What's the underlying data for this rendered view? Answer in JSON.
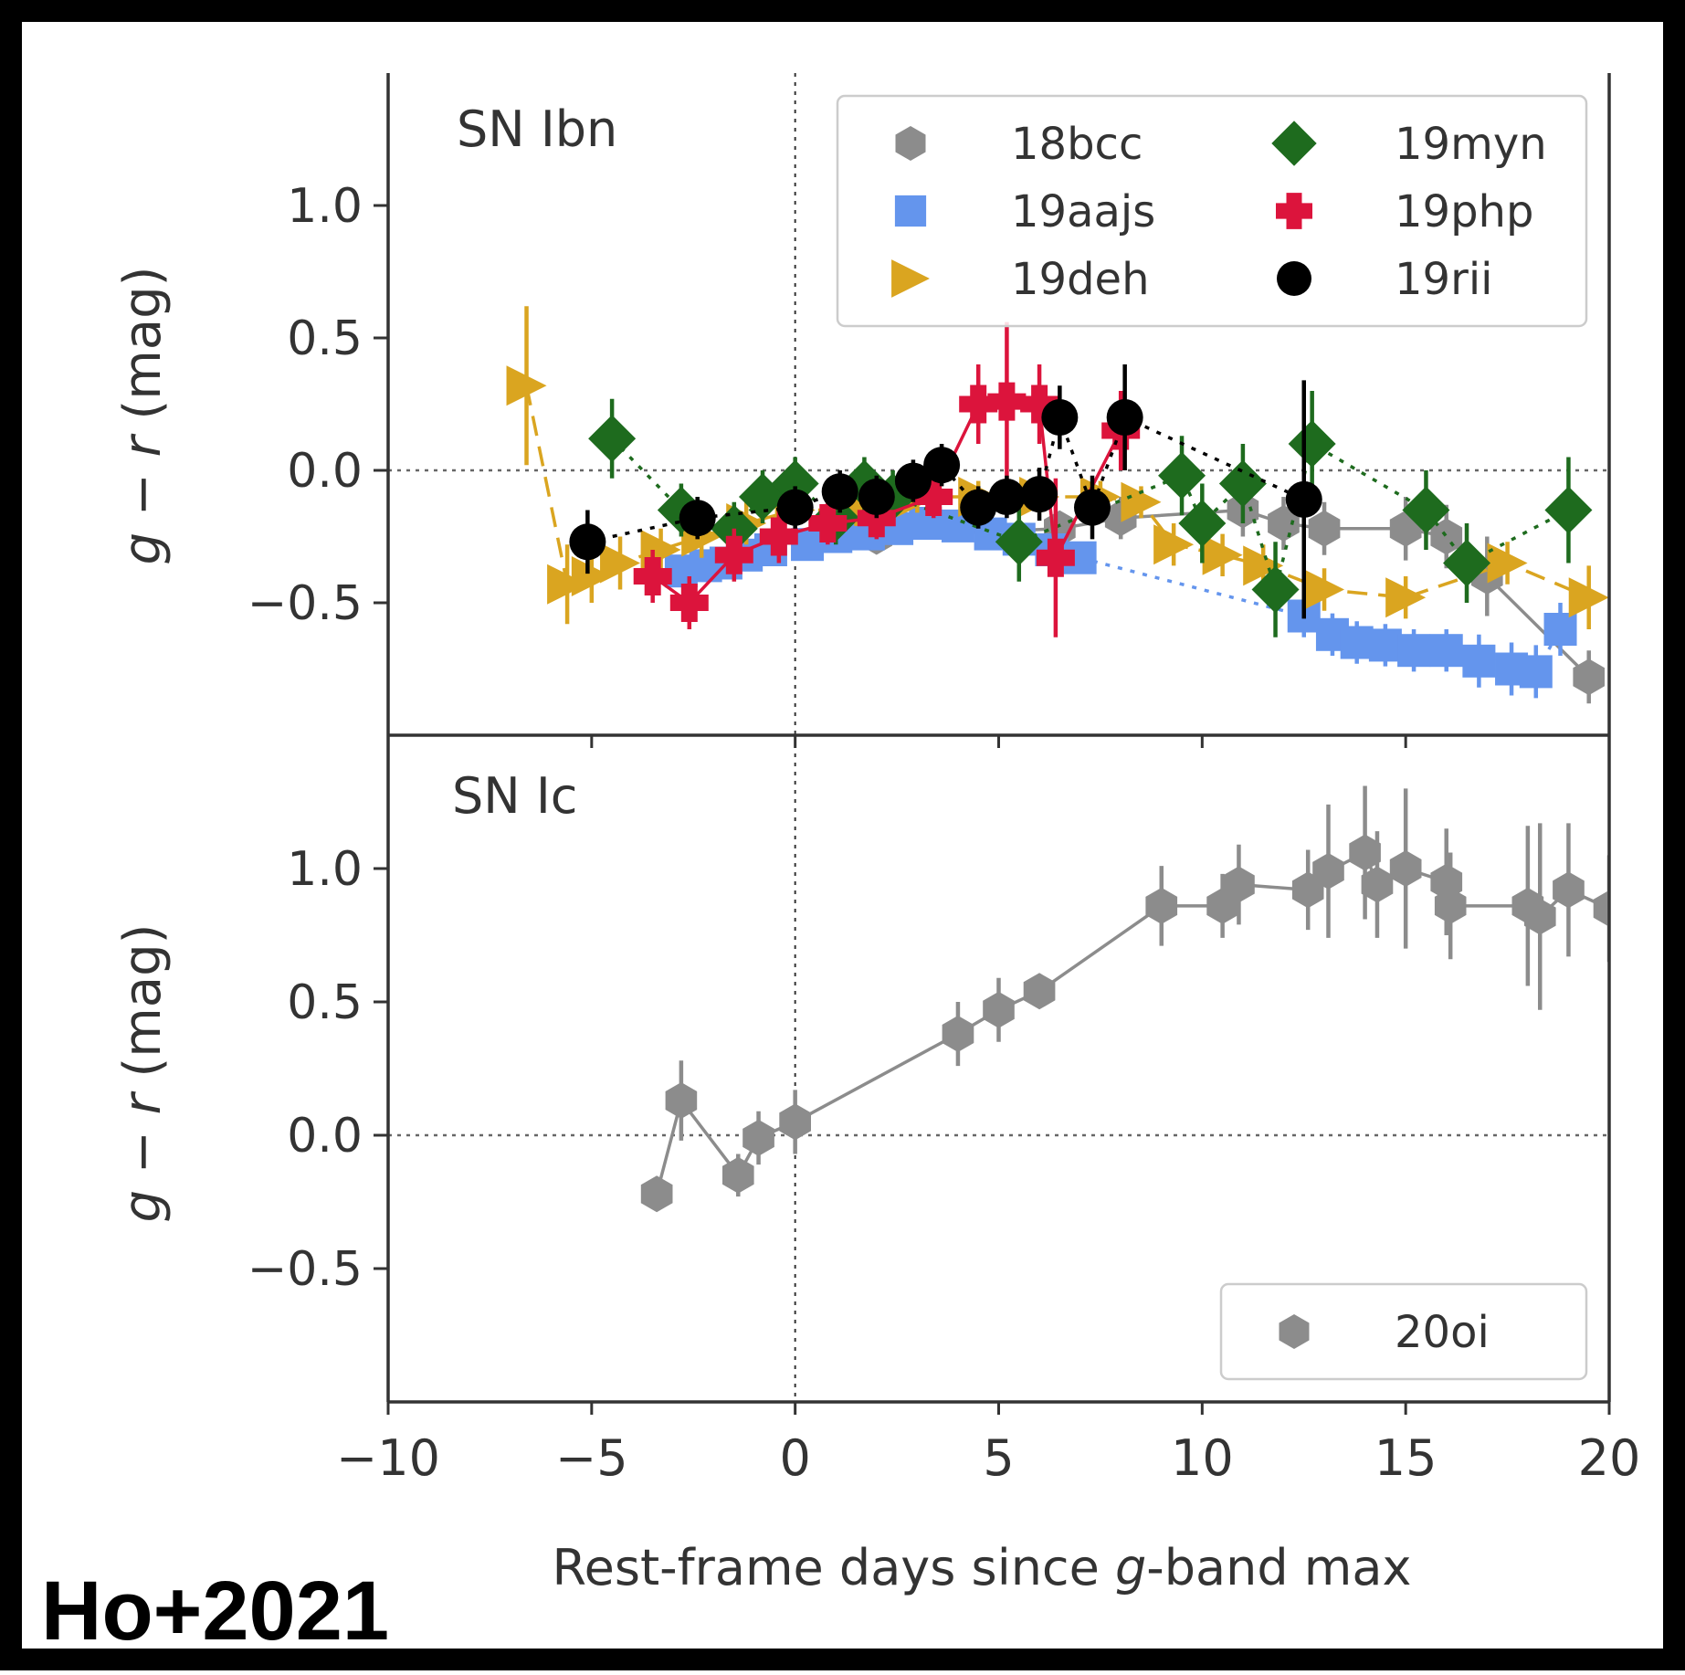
{
  "credit": "Ho+2021",
  "x_axis": {
    "label_pre": "Rest-frame days since ",
    "label_italic": "g",
    "label_post": "-band max",
    "xlim": [
      -10,
      20
    ],
    "ticks": [
      -10,
      -5,
      0,
      5,
      10,
      15,
      20
    ],
    "tick_labels": [
      "−10",
      "−5",
      "0",
      "5",
      "10",
      "15",
      "20"
    ]
  },
  "y_axis": {
    "label_g": "g",
    "label_mid": " − ",
    "label_r": "r",
    "label_unit": " (mag)",
    "ticks": [
      -0.5,
      0.0,
      0.5,
      1.0
    ],
    "tick_labels": [
      "−0.5",
      "0.0",
      "0.5",
      "1.0"
    ]
  },
  "colors": {
    "18bcc": "#8c8c8c",
    "19aajs": "#6495ed",
    "19deh": "#daa520",
    "19myn": "#1e6b1e",
    "19php": "#dc143c",
    "19rii": "#000000",
    "20oi": "#8c8c8c"
  },
  "chart_data": [
    {
      "type": "scatter",
      "panel_label": "SN Ibn",
      "xlim": [
        -10,
        20
      ],
      "ylim": [
        -1.0,
        1.5
      ],
      "reference_lines": {
        "x": 0,
        "y": 0
      },
      "legend": {
        "placement": "top-right",
        "columns": 2
      },
      "series": [
        {
          "name": "18bcc",
          "marker": "hexagon",
          "connect": "solid",
          "x": [
            1.5,
            2.0,
            6.5,
            8.0,
            11.0,
            12.0,
            13.0,
            15.0,
            16.0,
            17.0,
            19.5
          ],
          "y": [
            -0.22,
            -0.25,
            -0.22,
            -0.18,
            -0.15,
            -0.2,
            -0.22,
            -0.22,
            -0.25,
            -0.4,
            -0.78
          ],
          "err": [
            0.05,
            0.05,
            0.06,
            0.08,
            0.1,
            0.1,
            0.1,
            0.12,
            0.12,
            0.15,
            0.1
          ]
        },
        {
          "name": "19aajs",
          "marker": "square",
          "connect": "dotted",
          "x": [
            -2.8,
            -2.2,
            -1.7,
            -1.2,
            -0.6,
            0.3,
            1.0,
            1.8,
            2.5,
            3.2,
            4.0,
            4.8,
            5.5,
            6.3,
            7.0,
            12.5,
            13.2,
            13.8,
            14.5,
            15.2,
            16.0,
            16.8,
            17.6,
            18.2,
            18.8
          ],
          "y": [
            -0.38,
            -0.36,
            -0.35,
            -0.32,
            -0.3,
            -0.28,
            -0.25,
            -0.24,
            -0.22,
            -0.2,
            -0.21,
            -0.24,
            -0.26,
            -0.3,
            -0.33,
            -0.55,
            -0.62,
            -0.65,
            -0.66,
            -0.68,
            -0.68,
            -0.72,
            -0.75,
            -0.76,
            -0.6
          ],
          "err": [
            0.04,
            0.04,
            0.04,
            0.04,
            0.04,
            0.04,
            0.04,
            0.04,
            0.04,
            0.04,
            0.04,
            0.04,
            0.04,
            0.04,
            0.04,
            0.08,
            0.08,
            0.08,
            0.08,
            0.08,
            0.08,
            0.1,
            0.1,
            0.1,
            0.1
          ]
        },
        {
          "name": "19deh",
          "marker": "triangle-right",
          "connect": "dashed",
          "x": [
            -6.6,
            -5.6,
            -5.0,
            -4.3,
            -3.3,
            -2.3,
            -1.2,
            0.0,
            1.5,
            3.0,
            4.5,
            6.0,
            7.5,
            8.5,
            9.3,
            10.5,
            11.5,
            13.0,
            15.0,
            17.5,
            19.5
          ],
          "y": [
            0.32,
            -0.43,
            -0.4,
            -0.35,
            -0.3,
            -0.25,
            -0.2,
            -0.15,
            -0.15,
            -0.1,
            -0.1,
            -0.1,
            -0.1,
            -0.12,
            -0.28,
            -0.32,
            -0.36,
            -0.45,
            -0.48,
            -0.35,
            -0.48
          ],
          "err": [
            0.3,
            0.15,
            0.1,
            0.1,
            0.08,
            0.08,
            0.08,
            0.06,
            0.06,
            0.06,
            0.06,
            0.06,
            0.06,
            0.06,
            0.08,
            0.08,
            0.08,
            0.08,
            0.08,
            0.08,
            0.12
          ]
        },
        {
          "name": "19myn",
          "marker": "diamond",
          "connect": "dotted",
          "x": [
            -4.5,
            -2.8,
            -1.5,
            -0.8,
            0.0,
            1.0,
            1.7,
            2.4,
            5.5,
            9.5,
            10.0,
            11.0,
            11.8,
            12.7,
            15.5,
            16.5,
            19.0
          ],
          "y": [
            0.12,
            -0.15,
            -0.22,
            -0.1,
            -0.05,
            -0.18,
            -0.05,
            -0.1,
            -0.27,
            -0.02,
            -0.2,
            -0.05,
            -0.45,
            0.1,
            -0.15,
            -0.35,
            -0.15
          ],
          "err": [
            0.15,
            0.1,
            0.1,
            0.1,
            0.1,
            0.1,
            0.1,
            0.1,
            0.15,
            0.15,
            0.15,
            0.15,
            0.18,
            0.2,
            0.15,
            0.15,
            0.2
          ]
        },
        {
          "name": "19php",
          "marker": "plus",
          "connect": "solid",
          "x": [
            -3.5,
            -2.6,
            -1.5,
            -0.4,
            0.8,
            2.0,
            3.4,
            4.5,
            5.2,
            6.0,
            6.4,
            8.0
          ],
          "y": [
            -0.4,
            -0.5,
            -0.32,
            -0.25,
            -0.2,
            -0.18,
            -0.1,
            0.25,
            0.26,
            0.25,
            -0.33,
            0.15
          ],
          "err": [
            0.1,
            0.1,
            0.1,
            0.1,
            0.08,
            0.08,
            0.08,
            0.15,
            0.3,
            0.15,
            0.3,
            0.15
          ]
        },
        {
          "name": "19rii",
          "marker": "circle",
          "connect": "dotted",
          "x": [
            -5.1,
            -2.4,
            0.0,
            1.1,
            2.0,
            2.9,
            3.6,
            4.5,
            5.2,
            6.0,
            6.5,
            7.3,
            8.1,
            12.5
          ],
          "y": [
            -0.27,
            -0.18,
            -0.14,
            -0.08,
            -0.1,
            -0.04,
            0.02,
            -0.14,
            -0.1,
            -0.09,
            0.2,
            -0.14,
            0.2,
            -0.11
          ],
          "err": [
            0.12,
            0.08,
            0.08,
            0.08,
            0.08,
            0.08,
            0.08,
            0.08,
            0.08,
            0.1,
            0.12,
            0.12,
            0.2,
            0.45
          ]
        }
      ]
    },
    {
      "type": "scatter",
      "panel_label": "SN Ic",
      "xlim": [
        -10,
        20
      ],
      "ylim": [
        -1.0,
        1.5
      ],
      "reference_lines": {
        "x": 0,
        "y": 0
      },
      "legend": {
        "placement": "bottom-right",
        "columns": 1
      },
      "series": [
        {
          "name": "20oi",
          "marker": "hexagon",
          "connect": "solid",
          "x": [
            -3.4,
            -2.8,
            -1.4,
            -0.9,
            0.0,
            4.0,
            5.0,
            6.0,
            9.0,
            10.5,
            10.9,
            12.6,
            13.1,
            14.0,
            14.3,
            15.0,
            16.0,
            16.1,
            18.0,
            18.3,
            19.0,
            20.0
          ],
          "y": [
            -0.22,
            0.13,
            -0.15,
            -0.01,
            0.05,
            0.38,
            0.47,
            0.54,
            0.86,
            0.86,
            0.94,
            0.92,
            0.99,
            1.06,
            0.94,
            1.0,
            0.95,
            0.86,
            0.86,
            0.82,
            0.92,
            0.85
          ],
          "err": [
            0.05,
            0.15,
            0.08,
            0.1,
            0.12,
            0.12,
            0.12,
            0.06,
            0.15,
            0.12,
            0.15,
            0.15,
            0.25,
            0.25,
            0.2,
            0.3,
            0.2,
            0.2,
            0.3,
            0.35,
            0.25,
            0.2
          ]
        }
      ]
    }
  ]
}
